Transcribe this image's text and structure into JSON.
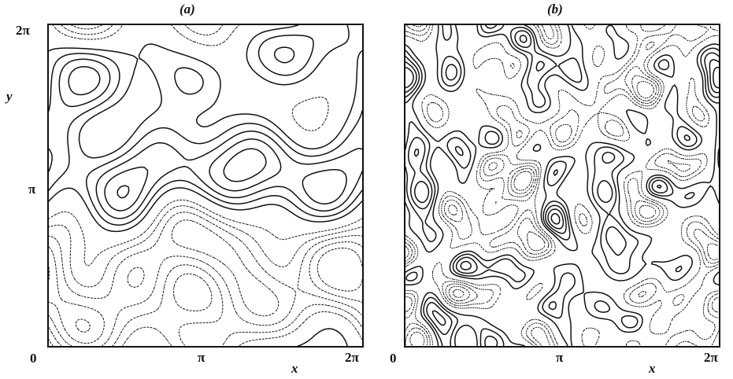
{
  "chart_data": [
    {
      "type": "contour",
      "panel_label": "(a)",
      "xlabel": "x",
      "ylabel": "y",
      "xlim": [
        0,
        6.283
      ],
      "ylim": [
        0,
        6.283
      ],
      "x_ticks": [
        "0",
        "π",
        "2π"
      ],
      "y_ticks": [
        "0",
        "π",
        "2π"
      ],
      "contours": "solid lines = positive levels, dotted lines = negative levels",
      "grid": false
    },
    {
      "type": "contour",
      "panel_label": "(b)",
      "xlabel": "x",
      "ylabel": "",
      "xlim": [
        0,
        6.283
      ],
      "ylim": [
        0,
        6.283
      ],
      "x_ticks": [
        "0",
        "π",
        "2π"
      ],
      "y_ticks": [],
      "contours": "solid lines = positive levels, dotted lines = negative levels",
      "grid": false
    }
  ]
}
